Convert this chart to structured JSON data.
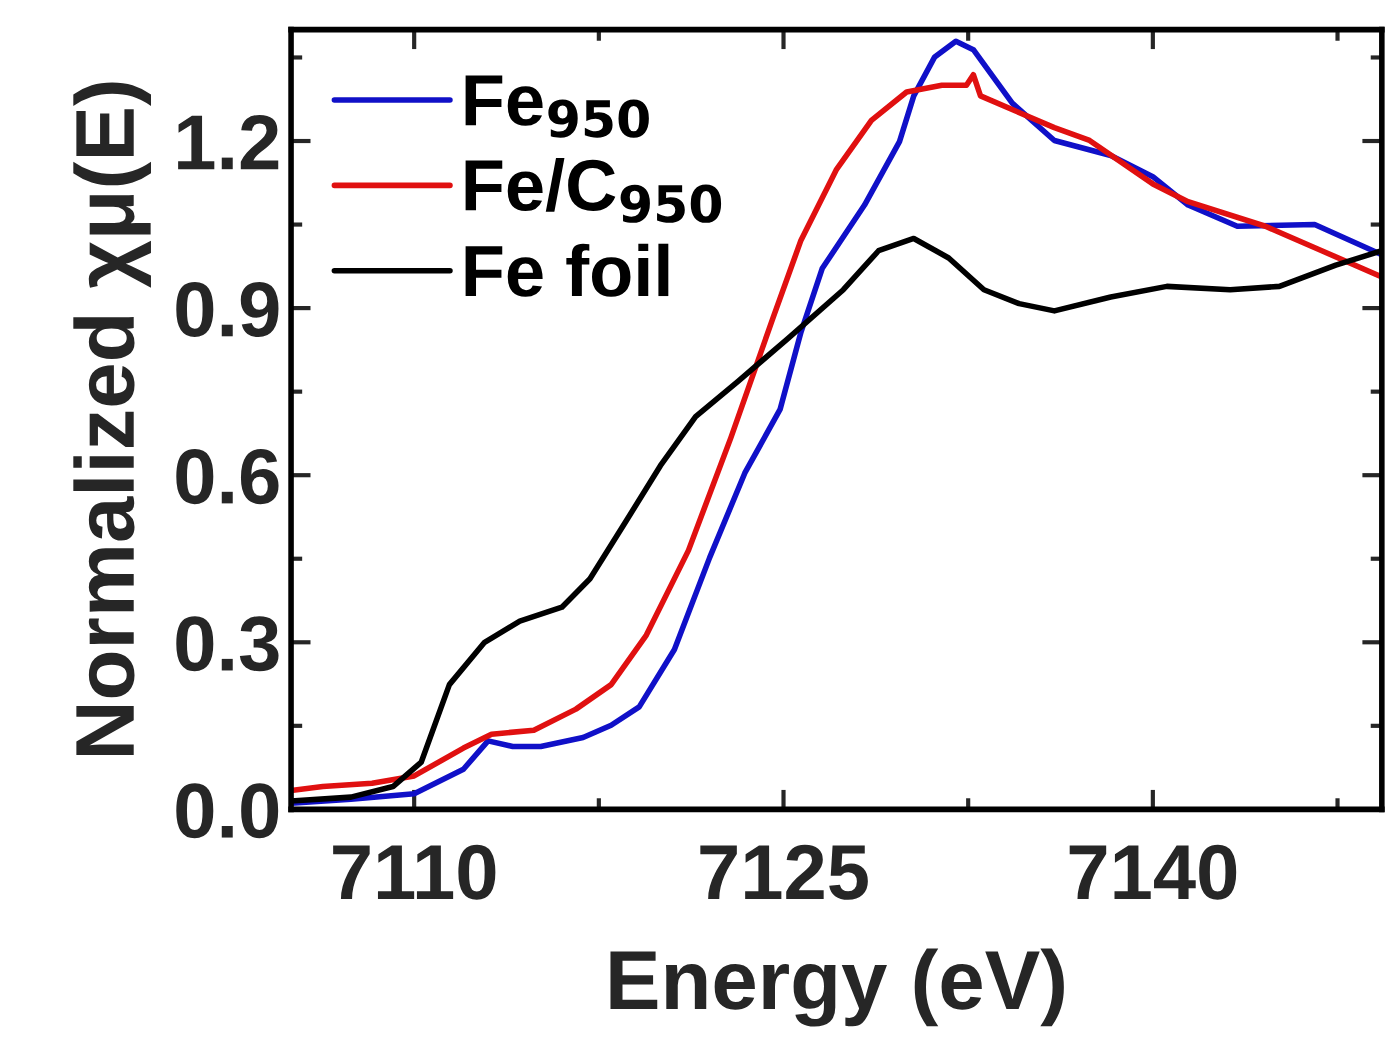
{
  "chart_data": {
    "type": "line",
    "xlabel": "Energy (eV)",
    "ylabel": "Normalized χμ(E)",
    "xlim": [
      7105,
      7149.3
    ],
    "xticks": [
      7110,
      7125,
      7140
    ],
    "ylim": [
      0,
      1.4
    ],
    "yticks": [
      {
        "value": 0,
        "label": "0.0"
      },
      {
        "value": 0.3,
        "label": "0.3"
      },
      {
        "value": 0.6,
        "label": "0.6"
      },
      {
        "value": 0.9,
        "label": "0.9"
      },
      {
        "value": 1.2,
        "label": "1.2"
      }
    ],
    "grid": false,
    "legend": "top left",
    "marker": "none",
    "line_style": "solid",
    "series": [
      {
        "name": "Fe$_{950}$",
        "color": "#1010c8",
        "x": [
          7105,
          7107.43,
          7110,
          7112,
          7113,
          7114,
          7115.14,
          7116.86,
          7118,
          7119.14,
          7120.57,
          7122,
          7123.43,
          7124.86,
          7125.71,
          7126.57,
          7128.29,
          7129.71,
          7130.29,
          7131.14,
          7132,
          7132.71,
          7134.29,
          7136,
          7138.29,
          7140,
          7141.43,
          7143.43,
          7146.57,
          7149.3
        ],
        "values": [
          0.011,
          0.018,
          0.028,
          0.072,
          0.123,
          0.113,
          0.113,
          0.129,
          0.151,
          0.184,
          0.287,
          0.452,
          0.604,
          0.718,
          0.857,
          0.971,
          1.085,
          1.199,
          1.281,
          1.351,
          1.379,
          1.364,
          1.268,
          1.201,
          1.174,
          1.136,
          1.085,
          1.047,
          1.05,
          0.996
        ]
      },
      {
        "name": "Fe/C$_{950}$",
        "color": "#e01010",
        "x": [
          7105,
          7106.29,
          7108.29,
          7110,
          7112,
          7113.14,
          7114.86,
          7116.57,
          7118,
          7119.43,
          7121.14,
          7122.86,
          7124.57,
          7125.71,
          7127.14,
          7128.57,
          7130,
          7131.43,
          7132.43,
          7132.71,
          7133,
          7136,
          7137.43,
          7140,
          7141.43,
          7144.57,
          7146.86,
          7149.3
        ],
        "values": [
          0.034,
          0.041,
          0.047,
          0.06,
          0.11,
          0.135,
          0.142,
          0.18,
          0.224,
          0.313,
          0.465,
          0.667,
          0.882,
          1.022,
          1.148,
          1.237,
          1.288,
          1.3,
          1.3,
          1.319,
          1.281,
          1.224,
          1.201,
          1.123,
          1.091,
          1.047,
          1.003,
          0.956
        ]
      },
      {
        "name": "Fe foil",
        "color": "#000000",
        "x": [
          7105,
          7107.43,
          7109.14,
          7110.29,
          7111.43,
          7112.86,
          7114.29,
          7116,
          7117.14,
          7118.57,
          7120,
          7121.43,
          7123.14,
          7125.14,
          7127.43,
          7128.86,
          7130.29,
          7131.71,
          7133.14,
          7134.57,
          7136,
          7138.29,
          7140.57,
          7143.14,
          7145.14,
          7147.43,
          7149.3
        ],
        "values": [
          0.015,
          0.022,
          0.041,
          0.085,
          0.224,
          0.3,
          0.338,
          0.363,
          0.414,
          0.515,
          0.617,
          0.705,
          0.768,
          0.844,
          0.933,
          1.003,
          1.025,
          0.99,
          0.933,
          0.908,
          0.895,
          0.92,
          0.939,
          0.933,
          0.939,
          0.977,
          1.003
        ]
      }
    ]
  }
}
